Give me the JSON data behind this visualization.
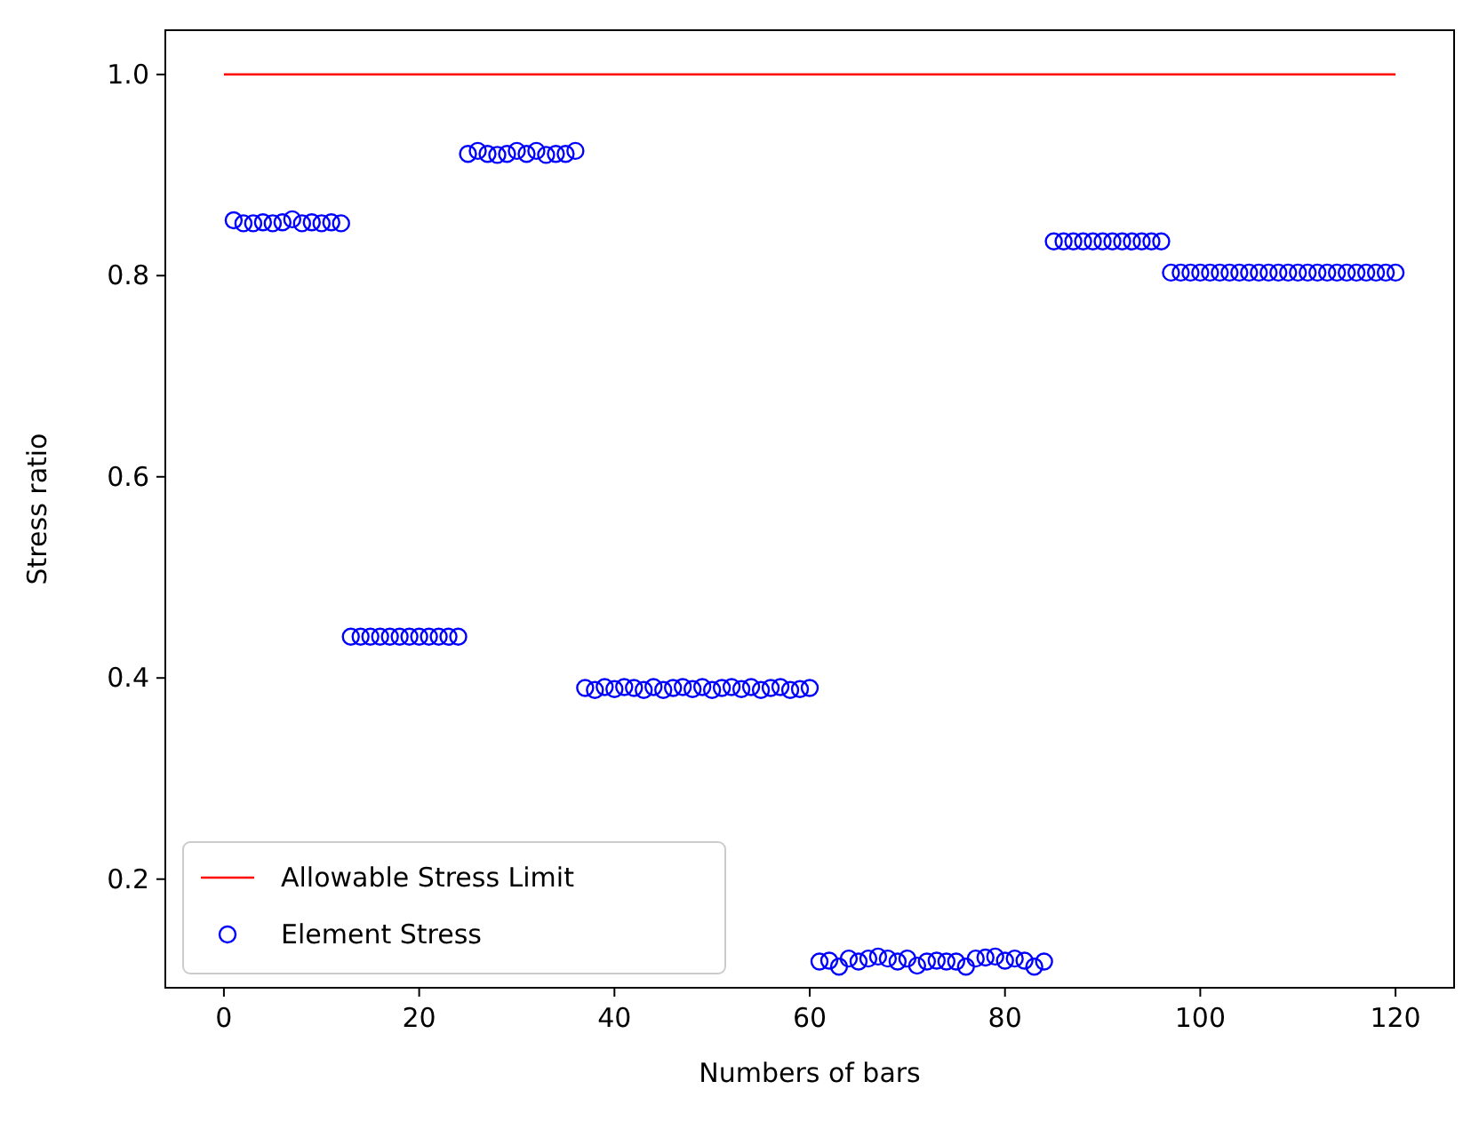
{
  "chart_data": {
    "type": "scatter",
    "xlabel": "Numbers of bars",
    "ylabel": "Stress ratio",
    "xlim": [
      -6,
      126
    ],
    "ylim": [
      0.092,
      1.044
    ],
    "xticks": [
      0,
      20,
      40,
      60,
      80,
      100,
      120
    ],
    "yticks": [
      0.2,
      0.4,
      0.6,
      0.8,
      {
        "value": 1.0,
        "label": "1.0"
      }
    ],
    "legend": "bottom left",
    "grid": false,
    "series": [
      {
        "name": "Allowable Stress Limit",
        "type": "line",
        "color": "#ff0000",
        "marker": "none",
        "x": [
          0,
          120
        ],
        "values": [
          1.0,
          1.0
        ]
      },
      {
        "name": "Element Stress",
        "color": "#0000ff",
        "marker": "circle",
        "x": [
          1,
          2,
          3,
          4,
          5,
          6,
          7,
          8,
          9,
          10,
          11,
          12,
          13,
          14,
          15,
          16,
          17,
          18,
          19,
          20,
          21,
          22,
          23,
          24,
          25,
          26,
          27,
          28,
          29,
          30,
          31,
          32,
          33,
          34,
          35,
          36,
          37,
          38,
          39,
          40,
          41,
          42,
          43,
          44,
          45,
          46,
          47,
          48,
          49,
          50,
          51,
          52,
          53,
          54,
          55,
          56,
          57,
          58,
          59,
          60,
          61,
          62,
          63,
          64,
          65,
          66,
          67,
          68,
          69,
          70,
          71,
          72,
          73,
          74,
          75,
          76,
          77,
          78,
          79,
          80,
          81,
          82,
          83,
          84,
          85,
          86,
          87,
          88,
          89,
          90,
          91,
          92,
          93,
          94,
          95,
          96,
          97,
          98,
          99,
          100,
          101,
          102,
          103,
          104,
          105,
          106,
          107,
          108,
          109,
          110,
          111,
          112,
          113,
          114,
          115,
          116,
          117,
          118,
          119,
          120
        ],
        "values": [
          0.855,
          0.852,
          0.852,
          0.853,
          0.852,
          0.853,
          0.856,
          0.852,
          0.853,
          0.852,
          0.853,
          0.852,
          0.441,
          0.441,
          0.441,
          0.441,
          0.441,
          0.441,
          0.441,
          0.441,
          0.441,
          0.441,
          0.441,
          0.441,
          0.921,
          0.924,
          0.921,
          0.92,
          0.921,
          0.924,
          0.921,
          0.924,
          0.92,
          0.921,
          0.921,
          0.924,
          0.39,
          0.388,
          0.391,
          0.389,
          0.391,
          0.39,
          0.388,
          0.391,
          0.388,
          0.39,
          0.391,
          0.389,
          0.391,
          0.388,
          0.39,
          0.391,
          0.389,
          0.391,
          0.388,
          0.39,
          0.391,
          0.388,
          0.389,
          0.39,
          0.118,
          0.119,
          0.113,
          0.121,
          0.118,
          0.121,
          0.123,
          0.121,
          0.118,
          0.121,
          0.114,
          0.118,
          0.119,
          0.118,
          0.118,
          0.113,
          0.121,
          0.122,
          0.123,
          0.119,
          0.121,
          0.119,
          0.113,
          0.118,
          0.834,
          0.834,
          0.834,
          0.834,
          0.834,
          0.834,
          0.834,
          0.834,
          0.834,
          0.834,
          0.834,
          0.834,
          0.803,
          0.803,
          0.803,
          0.803,
          0.803,
          0.803,
          0.803,
          0.803,
          0.803,
          0.803,
          0.803,
          0.803,
          0.803,
          0.803,
          0.803,
          0.803,
          0.803,
          0.803,
          0.803,
          0.803,
          0.803,
          0.803,
          0.803,
          0.803
        ]
      }
    ]
  }
}
